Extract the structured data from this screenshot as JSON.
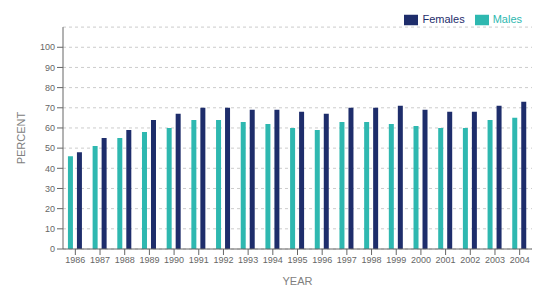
{
  "chart_data": {
    "type": "bar",
    "xlabel": "YEAR",
    "ylabel": "PERCENT",
    "categories": [
      "1986",
      "1987",
      "1988",
      "1989",
      "1990",
      "1991",
      "1992",
      "1993",
      "1994",
      "1995",
      "1996",
      "1997",
      "1998",
      "1999",
      "2000",
      "2001",
      "2002",
      "2003",
      "2004"
    ],
    "series": [
      {
        "name": "Males",
        "color": "#2eb8b0",
        "values": [
          46,
          51,
          55,
          58,
          60,
          64,
          64,
          63,
          62,
          60,
          59,
          63,
          63,
          62,
          61,
          60,
          60,
          64,
          65
        ]
      },
      {
        "name": "Females",
        "color": "#1e2d6b",
        "values": [
          48,
          55,
          59,
          64,
          67,
          70,
          70,
          69,
          69,
          68,
          67,
          70,
          70,
          71,
          69,
          68,
          68,
          71,
          73
        ]
      }
    ],
    "ylim": [
      0,
      110
    ],
    "yticks": [
      0,
      10,
      20,
      30,
      40,
      50,
      60,
      70,
      80,
      90,
      100
    ],
    "grid": true,
    "legend": "upper right"
  }
}
